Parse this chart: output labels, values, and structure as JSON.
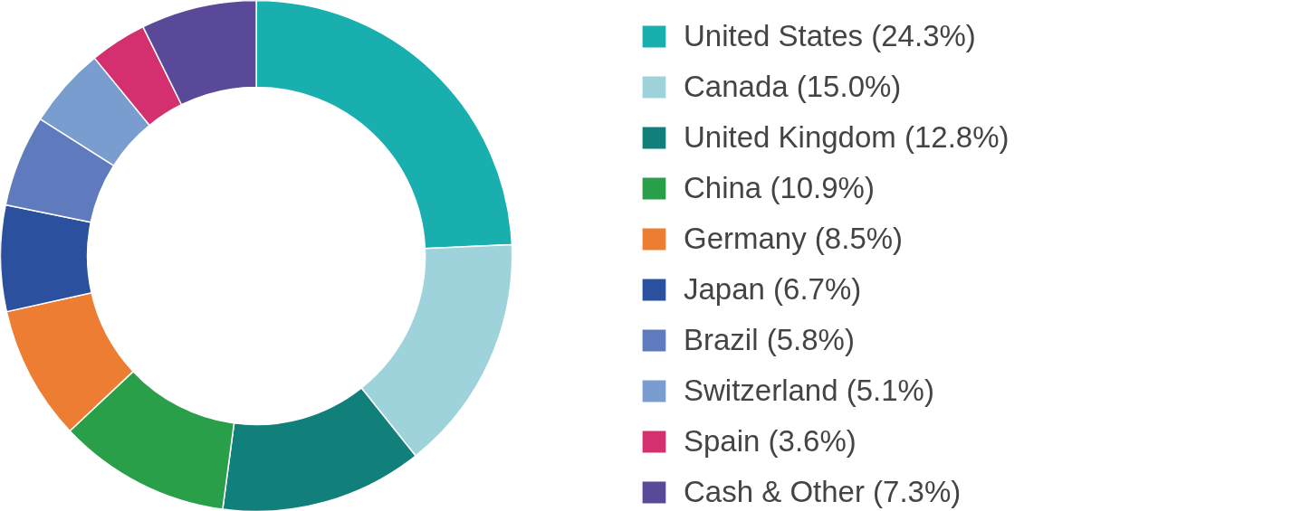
{
  "chart_data": {
    "type": "donut",
    "categories": [
      "United States (24.3%)",
      "Canada (15.0%)",
      "United Kingdom (12.8%)",
      "China (10.9%)",
      "Germany (8.5%)",
      "Japan (6.7%)",
      "Brazil (5.8%)",
      "Switzerland (5.1%)",
      "Spain (3.6%)",
      "Cash & Other (7.3%)"
    ],
    "values": [
      24.3,
      15.0,
      12.8,
      10.9,
      8.5,
      6.7,
      5.8,
      5.1,
      3.6,
      7.3
    ],
    "colors": [
      "#1aafaf",
      "#9fd3db",
      "#117f7a",
      "#2a9f4a",
      "#ec7d32",
      "#2a509e",
      "#5f7bbd",
      "#7a9dd0",
      "#d4306f",
      "#5a4898"
    ],
    "legend": "right"
  }
}
